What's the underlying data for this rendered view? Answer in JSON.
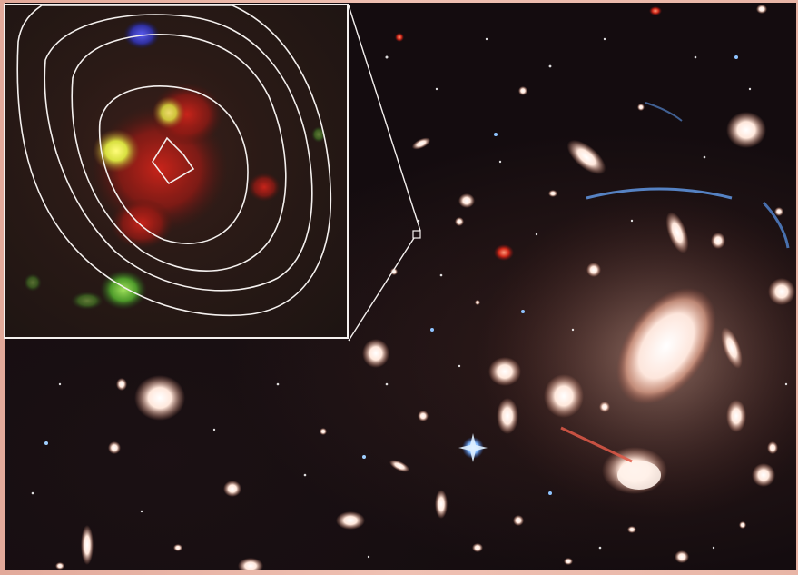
{
  "image": {
    "subject": "",
    "inset_present": true,
    "colors": {
      "frame": "#e8b8a8",
      "sky": "#140c0f",
      "contour": "#f4f0ee",
      "inset_background": "#2a1a16"
    }
  }
}
